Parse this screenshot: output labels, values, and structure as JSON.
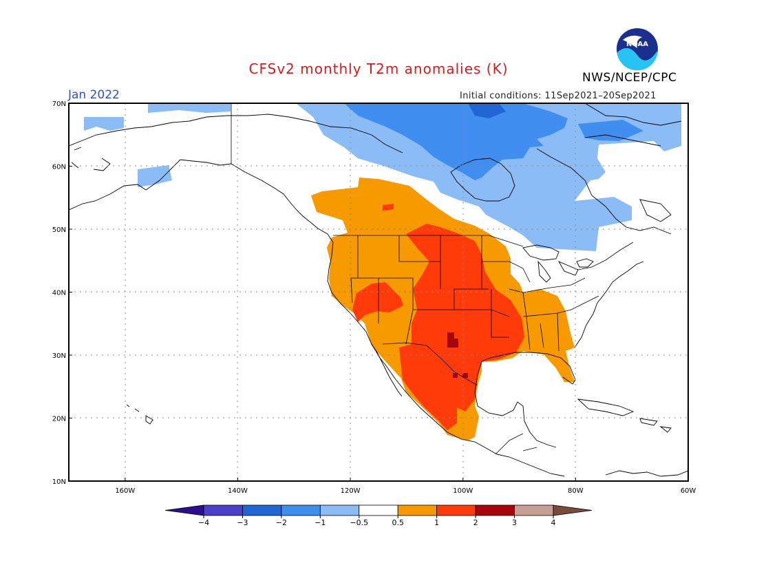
{
  "header": {
    "title": "CFSv2 monthly T2m anomalies (K)",
    "agency": "NWS/NCEP/CPC",
    "logo_text": "NOAA",
    "period": "Jan 2022",
    "initial_conditions": "Initial conditions: 11Sep2021–20Sep2021"
  },
  "axes": {
    "lat_ticks": [
      {
        "value": 70,
        "label": "70N"
      },
      {
        "value": 60,
        "label": "60N"
      },
      {
        "value": 50,
        "label": "50N"
      },
      {
        "value": 40,
        "label": "40N"
      },
      {
        "value": 30,
        "label": "30N"
      },
      {
        "value": 20,
        "label": "20N"
      },
      {
        "value": 10,
        "label": "10N"
      }
    ],
    "lon_ticks": [
      {
        "value": -160,
        "label": "160W"
      },
      {
        "value": -140,
        "label": "140W"
      },
      {
        "value": -120,
        "label": "120W"
      },
      {
        "value": -100,
        "label": "100W"
      },
      {
        "value": -80,
        "label": "80W"
      },
      {
        "value": -60,
        "label": "60W"
      }
    ],
    "lon_range": [
      -170,
      -60
    ],
    "lat_range": [
      10,
      70
    ]
  },
  "colorbar": {
    "colors": [
      "#2a0f8f",
      "#4b3ec9",
      "#2166d4",
      "#3f8ef0",
      "#8bbcf6",
      "#ffffff",
      "#f79a00",
      "#ff3b0a",
      "#a6050a",
      "#c79f92",
      "#7a4a3a"
    ],
    "tick_labels": [
      "−4",
      "−3",
      "−2",
      "−1",
      "−0.5",
      "0.5",
      "1",
      "2",
      "3",
      "4"
    ]
  },
  "anomaly_legend": {
    "strong_cold": "#2166d4",
    "cold": "#3f8ef0",
    "slight_cold": "#8bbcf6",
    "warm": "#f79a00",
    "warmer": "#ff3b0a",
    "hottest": "#a6050a"
  }
}
